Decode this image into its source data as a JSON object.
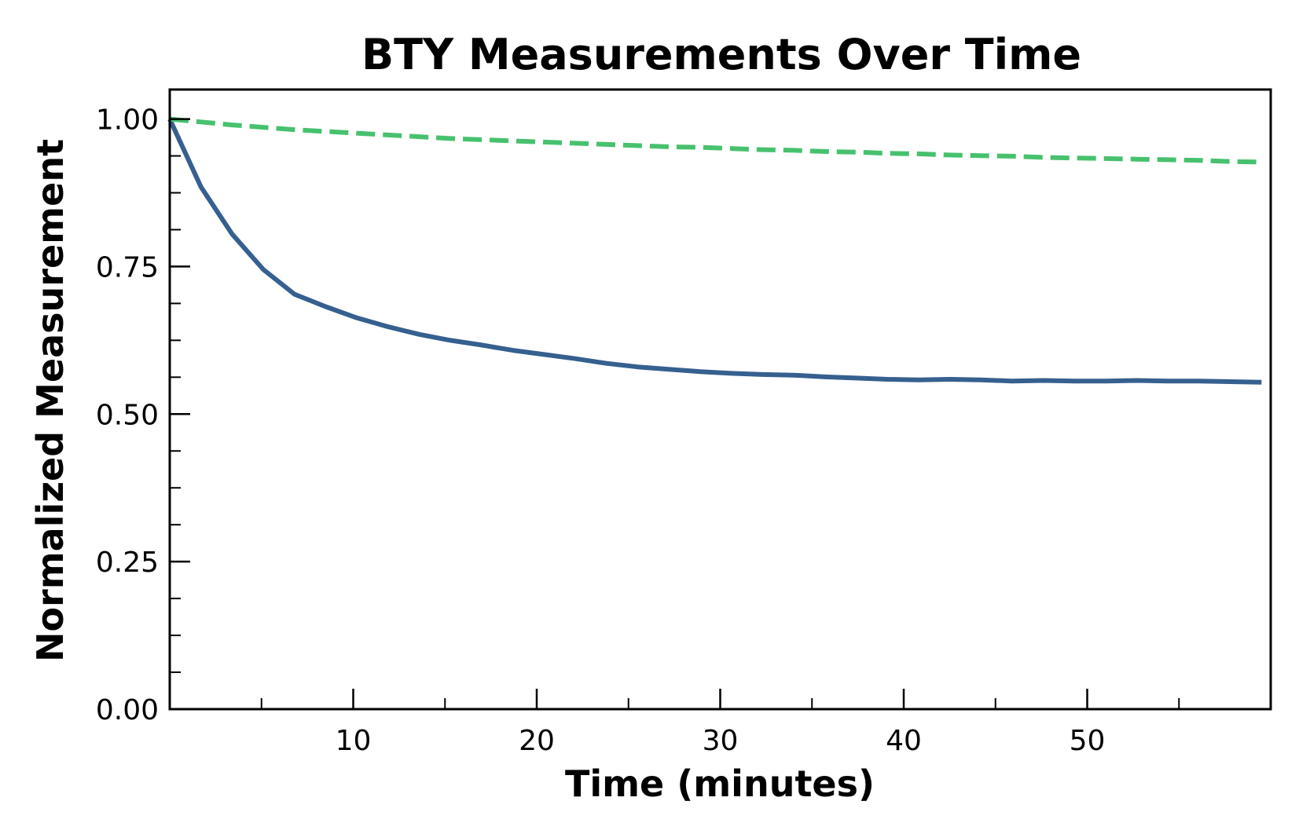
{
  "chart_data": {
    "type": "line",
    "title": "BTY Measurements Over Time",
    "xlabel": "Time (minutes)",
    "ylabel": "Normalized Measurement",
    "xlim": [
      0,
      60
    ],
    "ylim": [
      0,
      1.05
    ],
    "xticks": [
      10,
      20,
      30,
      40,
      50
    ],
    "xtick_labels": [
      "10",
      "20",
      "30",
      "40",
      "50"
    ],
    "x_minor_ticks": [
      5,
      15,
      25,
      35,
      45,
      55
    ],
    "yticks": [
      0,
      0.25,
      0.5,
      0.75,
      1.0
    ],
    "ytick_labels": [
      "0.00",
      "0.25",
      "0.50",
      "0.75",
      "1.00"
    ],
    "y_minor_ticks": [
      0.0625,
      0.125,
      0.1875,
      0.3125,
      0.375,
      0.4375,
      0.5625,
      0.625,
      0.6875,
      0.8125,
      0.875,
      0.9375
    ],
    "grid": false,
    "legend": false,
    "x": [
      0,
      1.7,
      3.4,
      5.1,
      6.8,
      8.5,
      10.2,
      11.9,
      13.6,
      15.3,
      17.0,
      18.7,
      20.4,
      22.1,
      23.8,
      25.5,
      27.2,
      28.9,
      30.6,
      32.3,
      34.0,
      35.7,
      37.4,
      39.1,
      40.8,
      42.5,
      44.2,
      45.9,
      47.6,
      49.3,
      51.0,
      52.7,
      54.4,
      56.1,
      57.8,
      59.5
    ],
    "series": [
      {
        "style": "solid",
        "color": "#35608f",
        "values": [
          1.0,
          0.885,
          0.805,
          0.745,
          0.703,
          0.682,
          0.663,
          0.648,
          0.635,
          0.625,
          0.617,
          0.608,
          0.601,
          0.594,
          0.586,
          0.58,
          0.576,
          0.572,
          0.569,
          0.567,
          0.566,
          0.563,
          0.561,
          0.559,
          0.558,
          0.559,
          0.558,
          0.556,
          0.557,
          0.556,
          0.556,
          0.557,
          0.556,
          0.556,
          0.555,
          0.554
        ]
      },
      {
        "style": "dashed",
        "color": "#47c16e",
        "values": [
          1.0,
          0.995,
          0.99,
          0.986,
          0.982,
          0.979,
          0.976,
          0.973,
          0.97,
          0.967,
          0.965,
          0.963,
          0.961,
          0.959,
          0.957,
          0.955,
          0.953,
          0.952,
          0.95,
          0.948,
          0.947,
          0.945,
          0.944,
          0.942,
          0.941,
          0.939,
          0.938,
          0.937,
          0.935,
          0.934,
          0.933,
          0.932,
          0.931,
          0.93,
          0.928,
          0.927
        ]
      }
    ]
  }
}
